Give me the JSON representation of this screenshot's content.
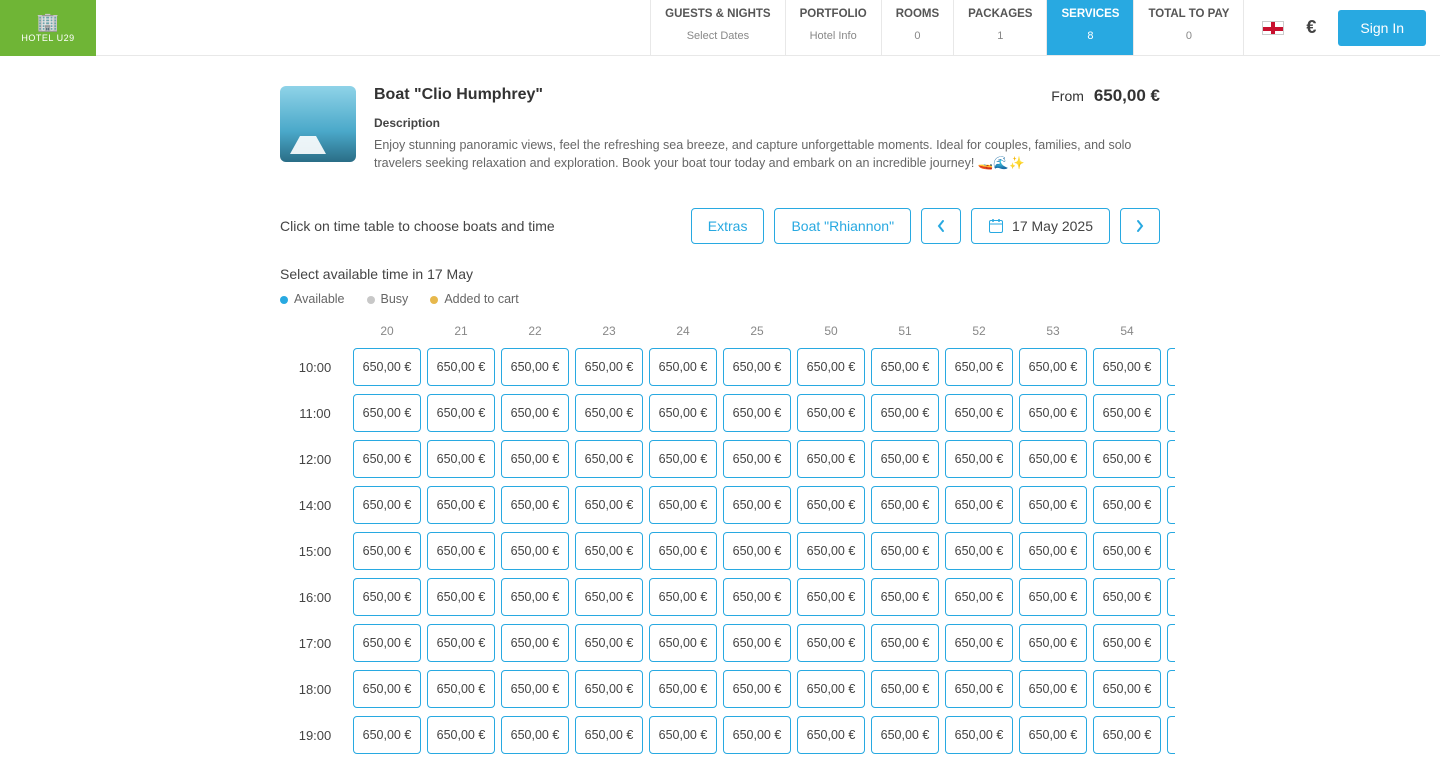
{
  "brand": {
    "name": "HOTEL U29"
  },
  "nav": {
    "tabs": [
      {
        "title": "GUESTS & NIGHTS",
        "sub": "Select Dates",
        "active": false
      },
      {
        "title": "PORTFOLIO",
        "sub": "Hotel Info",
        "active": false
      },
      {
        "title": "ROOMS",
        "sub": "0",
        "active": false
      },
      {
        "title": "PACKAGES",
        "sub": "1",
        "active": false
      },
      {
        "title": "SERVICES",
        "sub": "8",
        "active": true
      },
      {
        "title": "TOTAL TO PAY",
        "sub": "0",
        "active": false
      }
    ]
  },
  "header_right": {
    "currency_symbol": "€",
    "signin_label": "Sign In"
  },
  "product": {
    "title": "Boat \"Clio Humphrey\"",
    "from_label": "From",
    "price": "650,00 €",
    "description_label": "Description",
    "description_text": "Enjoy stunning panoramic views, feel the refreshing sea breeze, and capture unforgettable moments. Ideal for couples, families, and solo travelers seeking relaxation and exploration. Book your boat tour today and embark on an incredible journey! 🚤🌊✨"
  },
  "toolbar": {
    "hint": "Click on time table to choose boats and time",
    "extras_label": "Extras",
    "boat_label": "Boat \"Rhiannon\"",
    "date_label": "17 May 2025"
  },
  "legend": {
    "subhead": "Select available time in 17 May",
    "items": [
      {
        "label": "Available",
        "color": "#28a9e1"
      },
      {
        "label": "Busy",
        "color": "#c8c8c8"
      },
      {
        "label": "Added to cart",
        "color": "#e7b84c"
      }
    ]
  },
  "timetable": {
    "columns": [
      "20",
      "21",
      "22",
      "23",
      "24",
      "25",
      "50",
      "51",
      "52",
      "53",
      "54"
    ],
    "rows": [
      "10:00",
      "11:00",
      "12:00",
      "14:00",
      "15:00",
      "16:00",
      "17:00",
      "18:00",
      "19:00"
    ],
    "cell_price": "650,00 €",
    "colors": {
      "cell_border": "#28a9e1",
      "accent": "#28a9e1"
    }
  }
}
